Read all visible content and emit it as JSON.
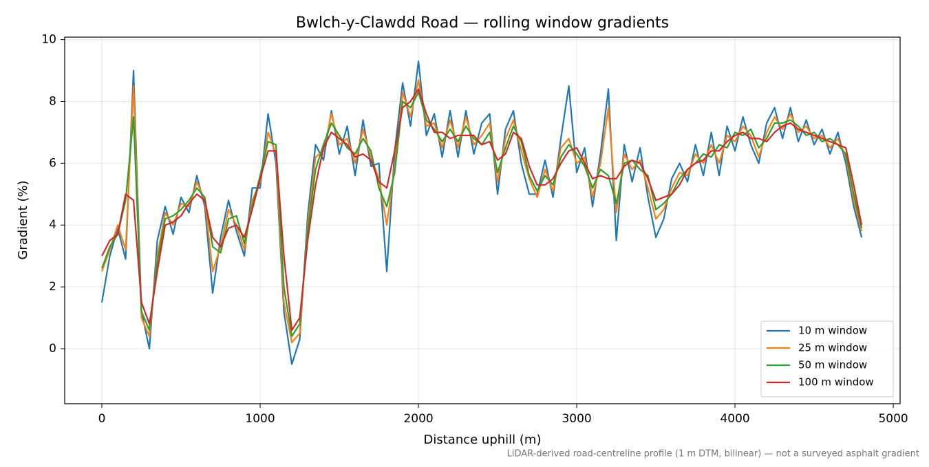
{
  "chart_data": {
    "type": "line",
    "title": "Bwlch-y-Clawdd Road — rolling window gradients",
    "xlabel": "Distance uphill (m)",
    "ylabel": "Gradient (%)",
    "footnote": "LiDAR-derived road-centreline profile (1 m DTM, bilinear) — not a surveyed asphalt gradient",
    "xlim": [
      -235,
      5043
    ],
    "ylim": [
      -1.78,
      10.08
    ],
    "xticks": [
      0,
      1000,
      2000,
      3000,
      4000,
      5000
    ],
    "yticks": [
      0,
      2,
      4,
      6,
      8,
      10
    ],
    "grid": true,
    "legend": "lower right",
    "x": [
      0,
      50,
      100,
      150,
      200,
      250,
      300,
      350,
      400,
      450,
      500,
      550,
      600,
      650,
      700,
      750,
      800,
      850,
      900,
      950,
      1000,
      1050,
      1100,
      1150,
      1200,
      1250,
      1300,
      1350,
      1400,
      1450,
      1500,
      1550,
      1600,
      1650,
      1700,
      1750,
      1800,
      1850,
      1900,
      1950,
      2000,
      2050,
      2100,
      2150,
      2200,
      2250,
      2300,
      2350,
      2400,
      2450,
      2500,
      2550,
      2600,
      2650,
      2700,
      2750,
      2800,
      2850,
      2900,
      2950,
      3000,
      3050,
      3100,
      3150,
      3200,
      3250,
      3300,
      3350,
      3400,
      3450,
      3500,
      3550,
      3600,
      3650,
      3700,
      3750,
      3800,
      3850,
      3900,
      3950,
      4000,
      4050,
      4100,
      4150,
      4200,
      4250,
      4300,
      4350,
      4400,
      4450,
      4500,
      4550,
      4600,
      4650,
      4700,
      4750,
      4800
    ],
    "series": [
      {
        "name": "10 m window",
        "color": "#1f77b4",
        "values": [
          1.5,
          3.0,
          3.9,
          2.9,
          9.0,
          1.2,
          0.0,
          3.5,
          4.6,
          3.7,
          4.9,
          4.4,
          5.6,
          4.6,
          1.8,
          3.6,
          4.8,
          3.8,
          3.0,
          5.2,
          5.2,
          7.6,
          6.0,
          1.2,
          -0.5,
          0.3,
          4.3,
          6.6,
          6.1,
          7.7,
          6.3,
          7.2,
          5.6,
          7.4,
          5.9,
          6.0,
          2.5,
          6.4,
          8.6,
          7.2,
          9.3,
          6.9,
          7.6,
          6.2,
          7.7,
          6.2,
          7.7,
          6.3,
          7.3,
          7.6,
          5.0,
          7.1,
          7.7,
          6.0,
          5.0,
          5.0,
          6.1,
          4.9,
          6.8,
          8.5,
          5.7,
          6.5,
          4.6,
          6.3,
          8.4,
          3.5,
          6.6,
          5.4,
          6.5,
          4.9,
          3.6,
          4.2,
          5.5,
          6.0,
          5.4,
          6.6,
          5.6,
          7.0,
          5.6,
          7.2,
          6.4,
          7.5,
          6.6,
          6.0,
          7.3,
          7.8,
          6.8,
          7.8,
          6.7,
          7.4,
          6.6,
          7.1,
          6.3,
          7.0,
          6.0,
          4.6,
          3.6
        ]
      },
      {
        "name": "25 m window",
        "color": "#ff7f0e",
        "values": [
          2.5,
          3.2,
          4.0,
          3.2,
          8.5,
          1.0,
          0.4,
          3.0,
          4.4,
          4.0,
          4.7,
          4.6,
          5.4,
          4.8,
          2.5,
          3.3,
          4.5,
          4.0,
          3.2,
          4.8,
          5.4,
          7.0,
          6.3,
          1.5,
          0.2,
          0.5,
          4.0,
          6.2,
          6.4,
          7.6,
          6.6,
          6.8,
          6.0,
          7.1,
          6.2,
          5.5,
          4.0,
          5.9,
          8.3,
          7.5,
          8.7,
          7.2,
          7.3,
          6.5,
          7.4,
          6.5,
          7.5,
          6.6,
          6.9,
          7.3,
          5.4,
          6.8,
          7.4,
          6.4,
          5.5,
          4.9,
          5.8,
          5.1,
          6.5,
          6.8,
          6.0,
          6.2,
          4.9,
          6.0,
          7.8,
          4.4,
          6.3,
          5.8,
          6.1,
          5.2,
          4.2,
          4.5,
          5.2,
          5.7,
          5.6,
          6.3,
          6.0,
          6.6,
          6.0,
          6.9,
          6.7,
          7.2,
          6.9,
          6.2,
          7.0,
          7.5,
          7.1,
          7.6,
          7.0,
          7.2,
          6.8,
          6.9,
          6.5,
          6.8,
          6.2,
          4.8,
          3.8
        ]
      },
      {
        "name": "50 m window",
        "color": "#2ca02c",
        "values": [
          2.6,
          3.3,
          3.7,
          4.8,
          7.5,
          1.2,
          0.6,
          2.8,
          4.2,
          4.3,
          4.5,
          4.8,
          5.2,
          4.9,
          3.3,
          3.1,
          4.2,
          4.3,
          3.4,
          4.6,
          5.6,
          6.7,
          6.6,
          2.0,
          0.4,
          0.8,
          3.8,
          5.8,
          6.6,
          7.3,
          6.9,
          6.5,
          6.3,
          6.8,
          6.4,
          5.2,
          4.6,
          5.7,
          8.0,
          7.8,
          8.3,
          7.4,
          7.1,
          6.7,
          7.1,
          6.7,
          7.2,
          6.8,
          6.6,
          7.0,
          5.7,
          6.5,
          7.2,
          6.7,
          5.6,
          5.1,
          5.6,
          5.3,
          6.2,
          6.6,
          6.3,
          5.9,
          5.2,
          5.8,
          5.6,
          4.7,
          6.0,
          6.1,
          5.8,
          5.6,
          4.5,
          4.7,
          5.0,
          5.5,
          5.8,
          6.0,
          6.3,
          6.2,
          6.6,
          6.5,
          7.0,
          6.9,
          7.1,
          6.5,
          6.8,
          7.3,
          7.3,
          7.4,
          7.2,
          6.9,
          7.0,
          6.7,
          6.8,
          6.6,
          6.3,
          5.0,
          3.9
        ]
      },
      {
        "name": "100 m window",
        "color": "#d62728",
        "values": [
          3.0,
          3.5,
          3.7,
          5.0,
          4.8,
          1.5,
          0.8,
          2.5,
          4.0,
          4.1,
          4.3,
          4.7,
          5.0,
          4.8,
          3.6,
          3.3,
          3.9,
          4.0,
          3.6,
          4.5,
          5.5,
          6.4,
          6.4,
          3.0,
          0.6,
          1.0,
          3.5,
          5.3,
          6.5,
          7.0,
          6.8,
          6.6,
          6.2,
          6.3,
          6.1,
          5.4,
          5.2,
          6.4,
          7.8,
          8.0,
          8.4,
          7.6,
          7.0,
          7.0,
          6.8,
          6.9,
          6.9,
          6.9,
          6.6,
          6.7,
          6.1,
          6.3,
          7.0,
          6.8,
          5.9,
          5.3,
          5.3,
          5.5,
          6.0,
          6.4,
          6.5,
          6.0,
          5.5,
          5.6,
          5.5,
          5.5,
          5.9,
          6.1,
          6.0,
          5.5,
          4.8,
          4.9,
          5.0,
          5.3,
          5.8,
          6.0,
          6.1,
          6.4,
          6.4,
          6.7,
          6.9,
          7.0,
          6.8,
          6.8,
          6.7,
          7.0,
          7.2,
          7.3,
          7.1,
          7.0,
          6.9,
          6.8,
          6.7,
          6.6,
          6.5,
          5.3,
          4.0
        ]
      }
    ]
  }
}
